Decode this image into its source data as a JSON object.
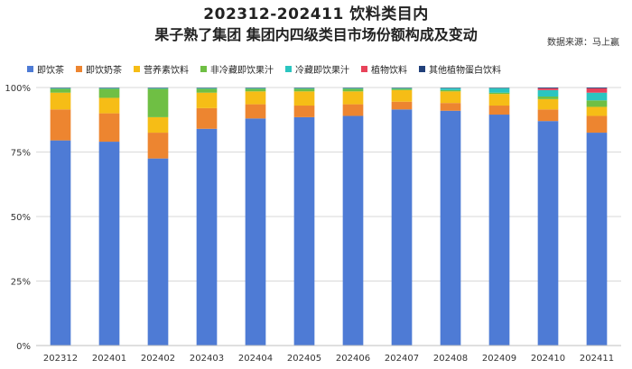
{
  "header": {
    "title_line1": "202312-202411 饮料类目内",
    "title_line2": "果子熟了集团 集团内四级类目市场份额构成及变动",
    "source": "数据来源：马上赢"
  },
  "colors": [
    "#4E7BD5",
    "#ED8530",
    "#F6BD16",
    "#6FBF44",
    "#2BC5C0",
    "#E8435A",
    "#21407A"
  ],
  "chart_data": {
    "type": "bar",
    "stacked": true,
    "title": "202312-202411 饮料类目内 果子熟了集团 集团内四级类目市场份额构成及变动",
    "xlabel": "",
    "ylabel": "",
    "ylim": [
      0,
      100
    ],
    "y_ticks": [
      "0%",
      "25%",
      "50%",
      "75%",
      "100%"
    ],
    "y_tick_values": [
      0,
      25,
      50,
      75,
      100
    ],
    "grid": true,
    "legend_position": "top",
    "categories": [
      "202312",
      "202401",
      "202402",
      "202403",
      "202404",
      "202405",
      "202406",
      "202407",
      "202408",
      "202409",
      "202410",
      "202411"
    ],
    "series": [
      {
        "name": "即饮茶",
        "values": [
          79.5,
          79.0,
          72.5,
          84.0,
          88.0,
          88.5,
          89.0,
          91.5,
          91.0,
          89.5,
          87.0,
          82.5
        ]
      },
      {
        "name": "即饮奶茶",
        "values": [
          12.0,
          11.0,
          10.0,
          8.0,
          5.5,
          4.5,
          4.5,
          3.0,
          3.0,
          3.5,
          4.5,
          6.5
        ]
      },
      {
        "name": "营养素饮料",
        "values": [
          6.5,
          6.0,
          6.0,
          6.0,
          5.0,
          5.5,
          5.0,
          4.5,
          4.5,
          4.5,
          4.0,
          3.5
        ]
      },
      {
        "name": "非冷藏即饮果汁",
        "values": [
          1.5,
          3.5,
          11.0,
          1.5,
          1.0,
          1.0,
          1.0,
          0.5,
          0.5,
          0.5,
          1.0,
          2.5
        ]
      },
      {
        "name": "冷藏即饮果汁",
        "values": [
          0.3,
          0.3,
          0.3,
          0.3,
          0.3,
          0.3,
          0.3,
          0.3,
          0.8,
          1.8,
          2.5,
          3.0
        ]
      },
      {
        "name": "植物饮料",
        "values": [
          0.1,
          0.1,
          0.1,
          0.1,
          0.1,
          0.1,
          0.1,
          0.1,
          0.1,
          0.1,
          0.7,
          1.7
        ]
      },
      {
        "name": "其他植物蛋白饮料",
        "values": [
          0.1,
          0.1,
          0.1,
          0.1,
          0.1,
          0.1,
          0.1,
          0.1,
          0.1,
          0.1,
          0.3,
          0.3
        ]
      }
    ]
  }
}
